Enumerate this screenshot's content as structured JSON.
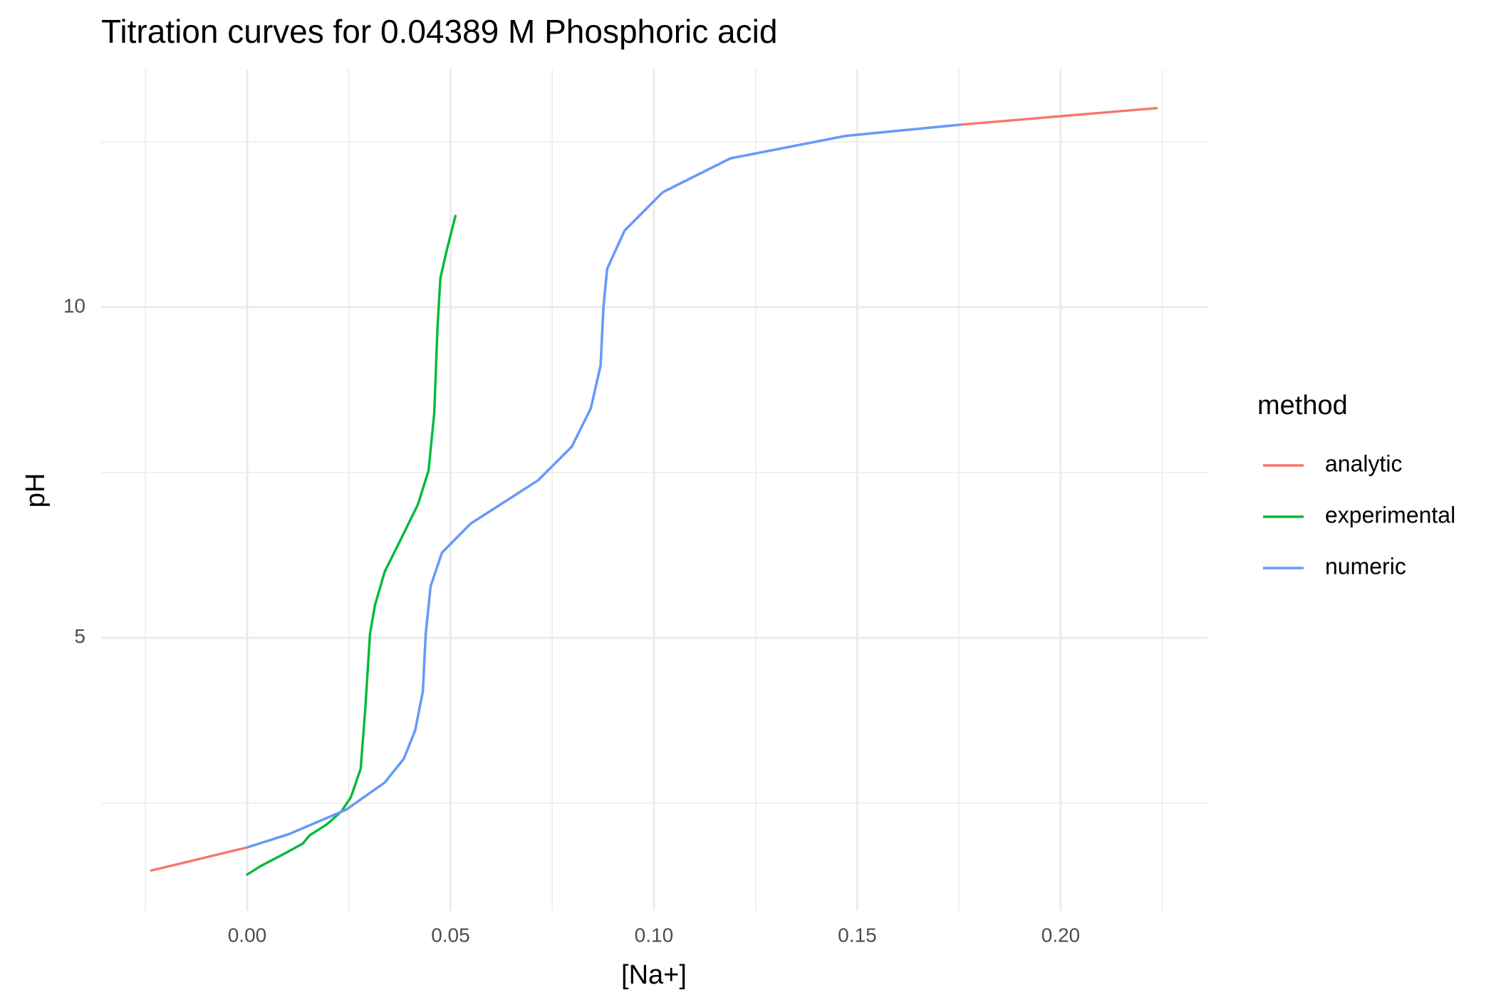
{
  "chart_data": {
    "type": "line",
    "title": "Titration curves for 0.04389 M Phosphoric acid",
    "x_label": "[Na+]",
    "y_label": "pH",
    "legend_title": "method",
    "legend_position": "right",
    "xlim": [
      -0.0359,
      0.2361
    ],
    "ylim": [
      0.87,
      13.6
    ],
    "xticks": [
      {
        "value": 0,
        "label": "0.00"
      },
      0.05,
      {
        "value": 0.1,
        "label": "0.10"
      },
      0.15,
      {
        "value": 0.2,
        "label": "0.20"
      }
    ],
    "yticks": [
      5,
      10
    ],
    "xminor": [
      -0.025,
      0.025,
      0.075,
      0.125,
      0.175,
      0.225
    ],
    "yminor": [
      2.5,
      7.5,
      12.5
    ],
    "grid": true,
    "series": [
      {
        "name": "analytic",
        "color": "#F8766D",
        "x": [
          -0.0236,
          0,
          0.0102,
          0.0243,
          0.0338,
          0.0385,
          0.0413,
          0.0432,
          0.0439,
          0.0451,
          0.0479,
          0.055,
          0.0715,
          0.0798,
          0.0845,
          0.0869,
          0.0876,
          0.0885,
          0.0928,
          0.1022,
          0.1188,
          0.1471,
          0.1754,
          0.2236
        ],
        "values": [
          1.48,
          1.83,
          2.03,
          2.4,
          2.81,
          3.17,
          3.6,
          4.19,
          5.06,
          5.78,
          6.29,
          6.73,
          7.38,
          7.89,
          8.47,
          9.12,
          10.0,
          10.58,
          11.16,
          11.74,
          12.25,
          12.59,
          12.76,
          13.01
        ]
      },
      {
        "name": "experimental",
        "color": "#00BA38",
        "x": [
          0,
          0.0031,
          0.0102,
          0.0137,
          0.0153,
          0.0196,
          0.0231,
          0.0255,
          0.0279,
          0.029,
          0.0302,
          0.0314,
          0.0338,
          0.0385,
          0.042,
          0.0446,
          0.046,
          0.0468,
          0.0475,
          0.0491,
          0.0512
        ],
        "values": [
          1.42,
          1.54,
          1.77,
          1.89,
          2.01,
          2.18,
          2.37,
          2.59,
          3.02,
          3.9,
          5.06,
          5.49,
          6.0,
          6.58,
          7.02,
          7.53,
          8.4,
          9.71,
          10.44,
          10.87,
          11.38
        ]
      },
      {
        "name": "numeric",
        "color": "#619CFF",
        "x": [
          0,
          0.0102,
          0.0243,
          0.0338,
          0.0385,
          0.0413,
          0.0432,
          0.0439,
          0.0451,
          0.0479,
          0.055,
          0.0715,
          0.0798,
          0.0845,
          0.0869,
          0.0876,
          0.0885,
          0.0928,
          0.1022,
          0.1188,
          0.1471,
          0.1754
        ],
        "values": [
          1.83,
          2.03,
          2.4,
          2.81,
          3.17,
          3.6,
          4.19,
          5.06,
          5.78,
          6.29,
          6.73,
          7.38,
          7.89,
          8.47,
          9.12,
          10.0,
          10.58,
          11.16,
          11.74,
          12.25,
          12.59,
          12.76
        ]
      }
    ]
  }
}
